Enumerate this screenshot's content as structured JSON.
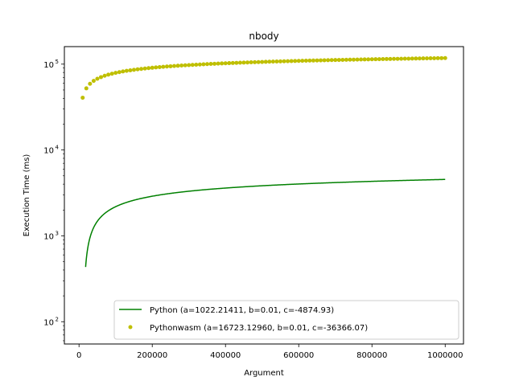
{
  "chart_data": {
    "type": "line",
    "title": "nbody",
    "xlabel": "Argument",
    "ylabel": "Execution Time (ms)",
    "x_scale": "linear",
    "y_scale": "log",
    "xlim": [
      -40000,
      1050000
    ],
    "ylim": [
      55,
      160000
    ],
    "x_ticks": [
      {
        "value": 0,
        "label": "0"
      },
      {
        "value": 200000,
        "label": "200000"
      },
      {
        "value": 400000,
        "label": "400000"
      },
      {
        "value": 600000,
        "label": "600000"
      },
      {
        "value": 800000,
        "label": "800000"
      },
      {
        "value": 1000000,
        "label": "1000000"
      }
    ],
    "y_ticks": [
      {
        "value": 100,
        "base": "10",
        "exp": "2"
      },
      {
        "value": 1000,
        "base": "10",
        "exp": "3"
      },
      {
        "value": 10000,
        "base": "10",
        "exp": "4"
      },
      {
        "value": 100000,
        "base": "10",
        "exp": "5"
      }
    ],
    "grid": false,
    "legend_position": "lower-right",
    "series": [
      {
        "name": "Python (a=1022.21411, b=0.01, c=-4874.93)",
        "style": "line",
        "color": "#008000",
        "a": 1022.21411,
        "b": 0.01,
        "c": -4874.93,
        "x_range": [
          18000,
          1000000
        ]
      },
      {
        "name": "Pythonwasm (a=16723.12960, b=0.01, c=-36366.07)",
        "style": "points",
        "color": "#bfbf00",
        "a": 16723.1296,
        "b": 0.01,
        "c": -36366.07,
        "x_range": [
          10000,
          1000000
        ],
        "x_step": 10000
      }
    ]
  }
}
